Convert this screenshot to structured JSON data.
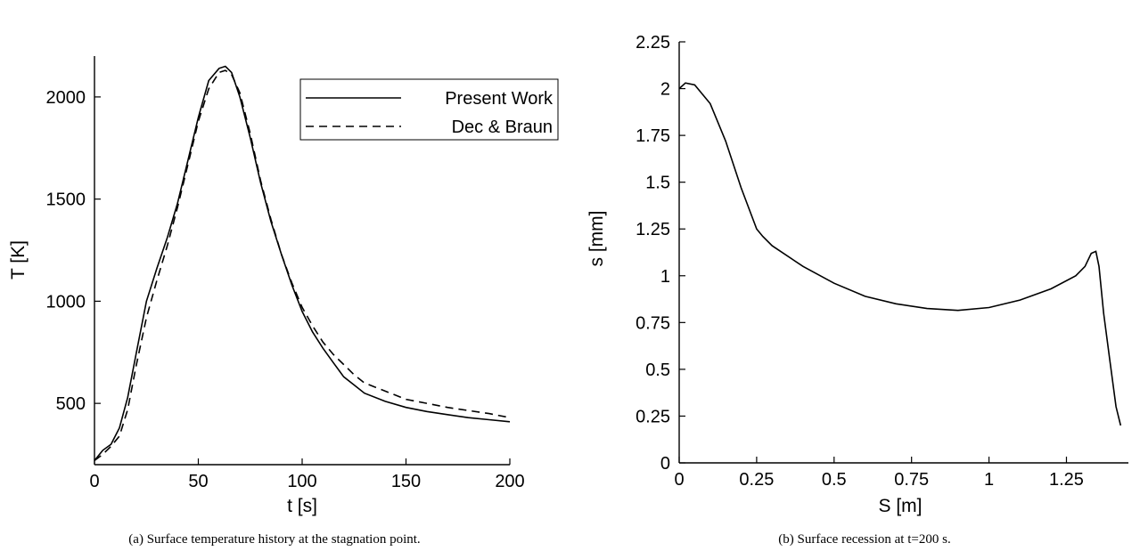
{
  "chart_data": [
    {
      "type": "line",
      "xlabel": "t [s]",
      "ylabel": "T [K]",
      "xlim": [
        0,
        200
      ],
      "ylim": [
        200,
        2200
      ],
      "xticks": [
        0,
        50,
        100,
        150,
        200
      ],
      "yticks": [
        500,
        1000,
        1500,
        2000
      ],
      "grid": false,
      "legend_position": "top-right",
      "caption": "(a)  Surface temperature history at the stagnation point.",
      "series": [
        {
          "name": "Present Work",
          "style": "solid",
          "x": [
            0,
            4,
            8,
            12,
            16,
            20,
            25,
            30,
            35,
            40,
            45,
            50,
            55,
            60,
            63,
            66,
            70,
            75,
            80,
            85,
            90,
            95,
            100,
            105,
            110,
            115,
            120,
            125,
            130,
            140,
            150,
            160,
            170,
            180,
            190,
            200
          ],
          "y": [
            220,
            270,
            300,
            380,
            530,
            740,
            1000,
            1160,
            1310,
            1480,
            1690,
            1900,
            2080,
            2140,
            2150,
            2120,
            2000,
            1800,
            1580,
            1390,
            1230,
            1080,
            950,
            850,
            770,
            700,
            630,
            590,
            550,
            510,
            480,
            460,
            445,
            430,
            420,
            410
          ]
        },
        {
          "name": "Dec & Braun",
          "style": "dashed",
          "x": [
            0,
            4,
            8,
            12,
            16,
            20,
            25,
            30,
            35,
            40,
            45,
            50,
            55,
            60,
            63,
            66,
            70,
            75,
            80,
            85,
            90,
            95,
            100,
            105,
            110,
            115,
            120,
            125,
            130,
            140,
            150,
            160,
            170,
            180,
            190,
            200
          ],
          "y": [
            220,
            250,
            290,
            340,
            470,
            680,
            920,
            1100,
            1270,
            1460,
            1670,
            1880,
            2040,
            2120,
            2130,
            2110,
            2020,
            1820,
            1590,
            1400,
            1230,
            1090,
            970,
            880,
            800,
            740,
            690,
            640,
            600,
            560,
            520,
            500,
            480,
            465,
            450,
            430
          ]
        }
      ]
    },
    {
      "type": "line",
      "xlabel": "S [m]",
      "ylabel": "s [mm]",
      "xlim": [
        0,
        1.45
      ],
      "ylim": [
        0,
        2.25
      ],
      "xticks": [
        0,
        0.25,
        0.5,
        0.75,
        1,
        1.25
      ],
      "xtick_labels": [
        "0",
        "0.25",
        "0.5",
        "0.75",
        "1",
        "1.25"
      ],
      "yticks": [
        0,
        0.25,
        0.5,
        0.75,
        1,
        1.25,
        1.5,
        1.75,
        2,
        2.25
      ],
      "ytick_labels": [
        "0",
        "0.25",
        "0.5",
        "0.75",
        "1",
        "1.25",
        "1.5",
        "1.75",
        "2",
        "2.25"
      ],
      "grid": false,
      "caption": "(b)  Surface recession at t=200 s.",
      "series": [
        {
          "style": "solid",
          "x": [
            0,
            0.02,
            0.05,
            0.1,
            0.15,
            0.2,
            0.25,
            0.27,
            0.3,
            0.4,
            0.5,
            0.6,
            0.7,
            0.8,
            0.9,
            1.0,
            1.1,
            1.2,
            1.28,
            1.31,
            1.33,
            1.345,
            1.355,
            1.37,
            1.39,
            1.41,
            1.425
          ],
          "y": [
            2.0,
            2.03,
            2.02,
            1.92,
            1.72,
            1.47,
            1.25,
            1.21,
            1.16,
            1.05,
            0.96,
            0.89,
            0.85,
            0.825,
            0.815,
            0.83,
            0.87,
            0.93,
            1.0,
            1.05,
            1.12,
            1.13,
            1.05,
            0.8,
            0.55,
            0.3,
            0.2
          ]
        }
      ]
    }
  ]
}
